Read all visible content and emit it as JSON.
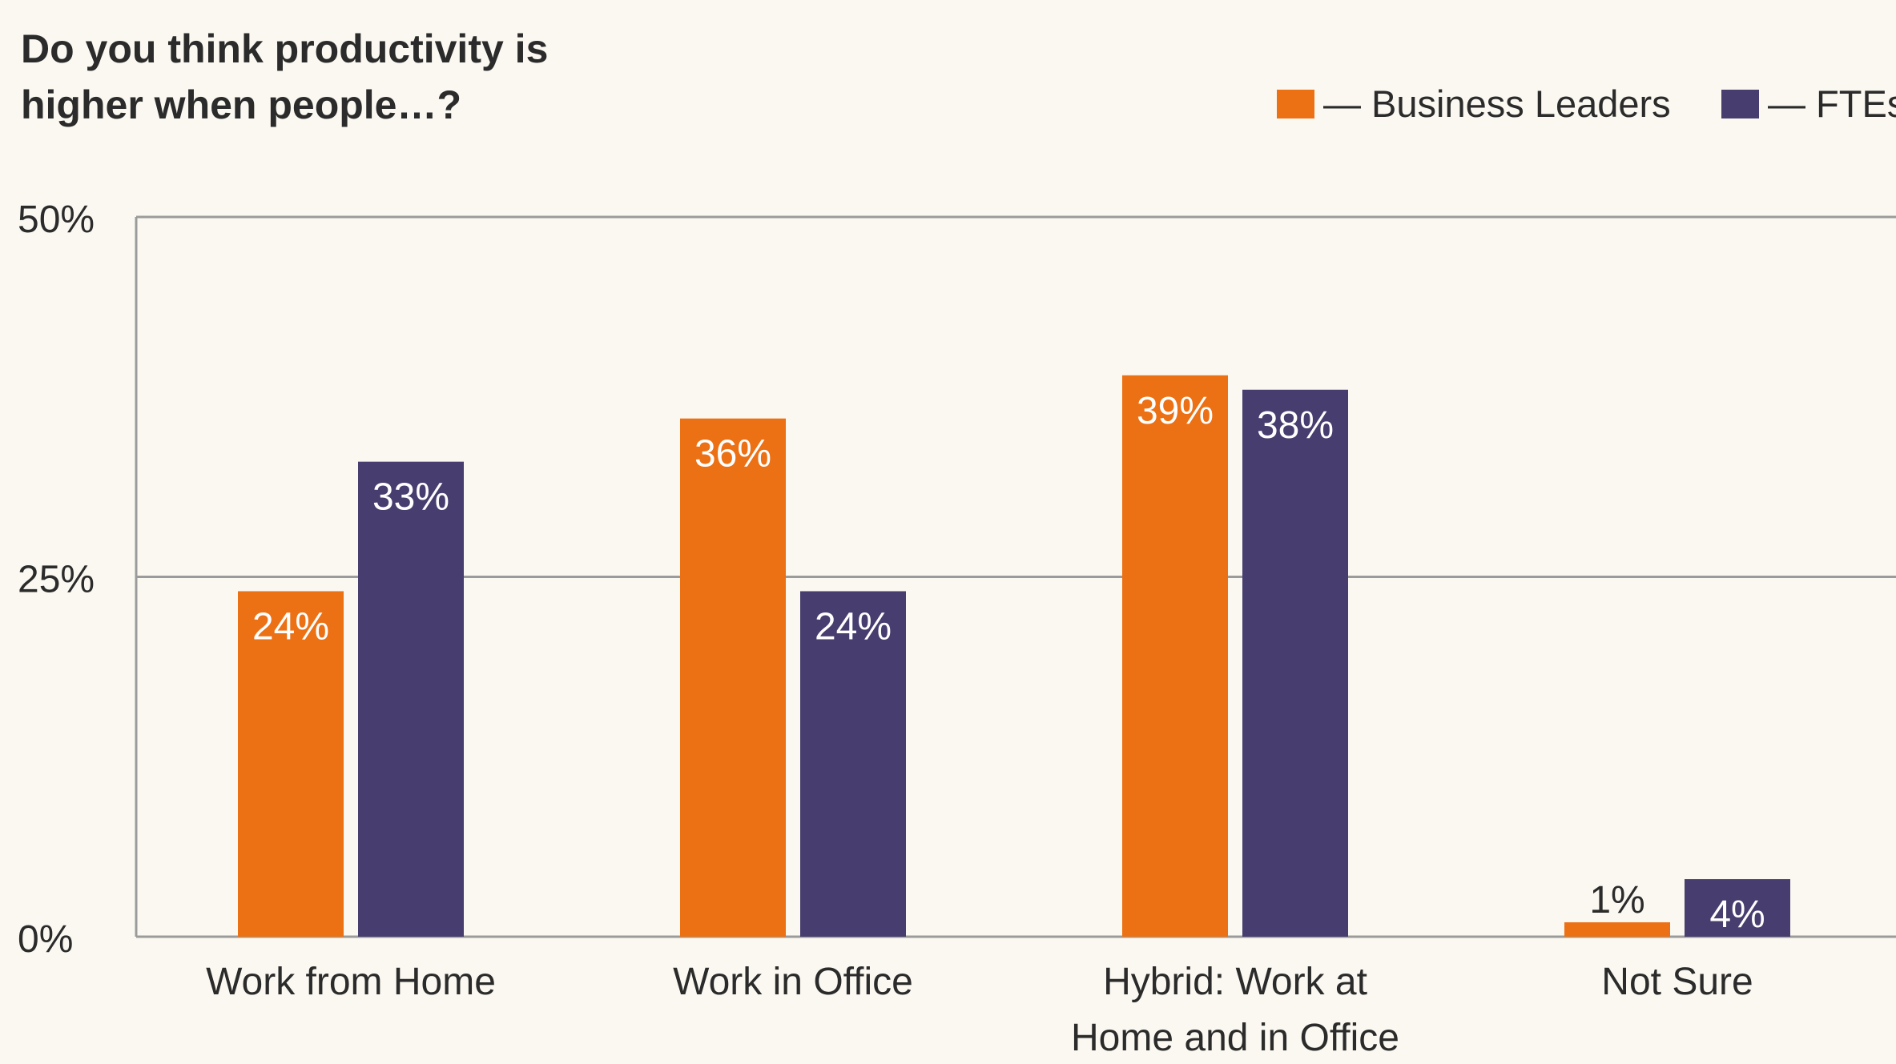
{
  "chart_data": {
    "type": "bar",
    "title_lines": [
      "Do you think productivity is",
      "higher when people…?"
    ],
    "categories": [
      [
        "Work from Home"
      ],
      [
        "Work in Office"
      ],
      [
        "Hybrid: Work at",
        "Home and in Office"
      ],
      [
        "Not Sure"
      ]
    ],
    "series": [
      {
        "name": "Business Leaders",
        "legend_label": "— Business Leaders",
        "color": "#ec7014",
        "values": [
          24,
          36,
          39,
          1
        ],
        "labels": [
          "24%",
          "36%",
          "39%",
          "1%"
        ]
      },
      {
        "name": "FTEs",
        "legend_label": "— FTEs",
        "color": "#473d6e",
        "values": [
          33,
          24,
          38,
          4
        ],
        "labels": [
          "33%",
          "24%",
          "38%",
          "4%"
        ]
      }
    ],
    "ylim": [
      0,
      50
    ],
    "yticks": [
      0,
      25,
      50
    ],
    "ytick_labels": [
      "0%",
      "25%",
      "50%"
    ],
    "grid": true,
    "legend_position": "top-right"
  }
}
